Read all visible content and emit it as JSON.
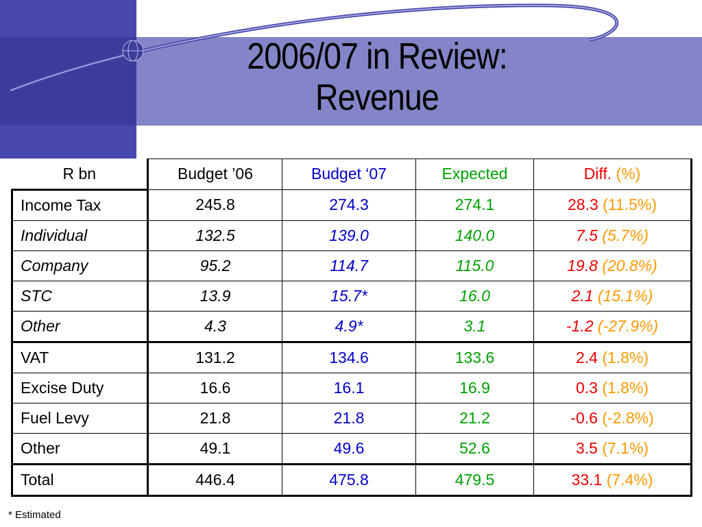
{
  "slide": {
    "title_line1": "2006/07 in Review:",
    "title_line2": "Revenue",
    "footnote": "* Estimated"
  },
  "colors": {
    "band": "#8080c4",
    "square": "#4040a8",
    "budget07": "#0000cc",
    "expected": "#00a000",
    "diff": "#ee0000",
    "pct": "#ff9900"
  },
  "table": {
    "headers": {
      "unit": "R bn",
      "budget06": "Budget ’06",
      "budget07": "Budget ‘07",
      "expected": "Expected",
      "diff": "Diff.",
      "pct": "(%)"
    },
    "rows": [
      {
        "label": "Income Tax",
        "budget06": "245.8",
        "budget07": "274.3",
        "expected": "274.1",
        "diff": "28.3",
        "pct": "(11.5%)"
      },
      {
        "label": "Individual",
        "budget06": "132.5",
        "budget07": "139.0",
        "expected": "140.0",
        "diff": "7.5",
        "pct": "(5.7%)"
      },
      {
        "label": "Company",
        "budget06": "95.2",
        "budget07": "114.7",
        "expected": "115.0",
        "diff": "19.8",
        "pct": "(20.8%)"
      },
      {
        "label": "STC",
        "budget06": "13.9",
        "budget07": "15.7*",
        "expected": "16.0",
        "diff": "2.1",
        "pct": "(15.1%)"
      },
      {
        "label": "Other",
        "budget06": "4.3",
        "budget07": "4.9*",
        "expected": "3.1",
        "diff": "-1.2",
        "pct": "(-27.9%)"
      },
      {
        "label": "VAT",
        "budget06": "131.2",
        "budget07": "134.6",
        "expected": "133.6",
        "diff": "2.4",
        "pct": "(1.8%)"
      },
      {
        "label": "Excise Duty",
        "budget06": "16.6",
        "budget07": "16.1",
        "expected": "16.9",
        "diff": "0.3",
        "pct": "(1.8%)"
      },
      {
        "label": "Fuel Levy",
        "budget06": "21.8",
        "budget07": "21.8",
        "expected": "21.2",
        "diff": "-0.6",
        "pct": "(-2.8%)"
      },
      {
        "label": "Other",
        "budget06": "49.1",
        "budget07": "49.6",
        "expected": "52.6",
        "diff": "3.5",
        "pct": "(7.1%)"
      },
      {
        "label": "Total",
        "budget06": "446.4",
        "budget07": "475.8",
        "expected": "479.5",
        "diff": "33.1",
        "pct": "(7.4%)"
      }
    ]
  }
}
